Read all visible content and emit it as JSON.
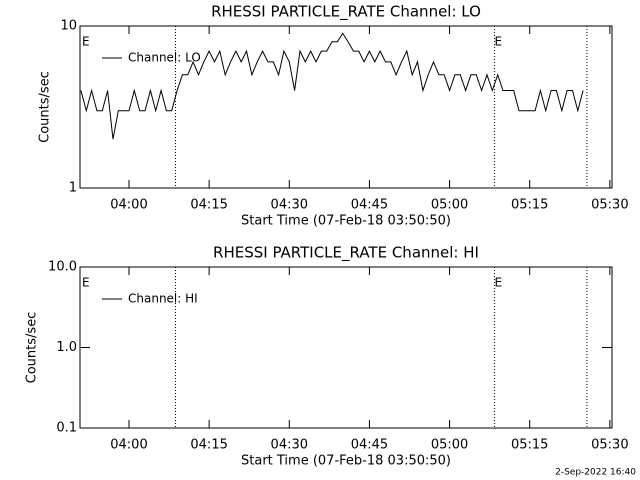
{
  "chart_data": [
    {
      "type": "line",
      "title": "RHESSI PARTICLE_RATE Channel: LO",
      "xlabel": "Start Time (07-Feb-18 03:50:50)",
      "ylabel": "Counts/sec",
      "ylog": true,
      "ylim": [
        1,
        10
      ],
      "yticks": [
        1,
        10
      ],
      "xlim": [
        230.83,
        330.4
      ],
      "xticks": [
        {
          "value": 240,
          "label": "04:00"
        },
        {
          "value": 255,
          "label": "04:15"
        },
        {
          "value": 270,
          "label": "04:30"
        },
        {
          "value": 285,
          "label": "04:45"
        },
        {
          "value": 300,
          "label": "05:00"
        },
        {
          "value": 315,
          "label": "05:15"
        },
        {
          "value": 330,
          "label": "05:30"
        }
      ],
      "vlines": [
        248.7,
        308.4,
        325.7
      ],
      "annotations": [
        {
          "text": "E",
          "x": 231.2
        },
        {
          "text": "E",
          "x": 308.4
        }
      ],
      "legend": "upper left",
      "x": [
        231,
        232,
        233,
        234,
        235,
        236,
        237,
        238,
        239,
        240,
        241,
        242,
        243,
        244,
        245,
        246,
        247,
        248,
        249,
        250,
        251,
        252,
        253,
        254,
        255,
        256,
        257,
        258,
        259,
        260,
        261,
        262,
        263,
        264,
        265,
        266,
        267,
        268,
        269,
        270,
        271,
        272,
        273,
        274,
        275,
        276,
        277,
        278,
        279,
        280,
        281,
        282,
        283,
        284,
        285,
        286,
        287,
        288,
        289,
        290,
        291,
        292,
        293,
        294,
        295,
        296,
        297,
        298,
        299,
        300,
        301,
        302,
        303,
        304,
        305,
        306,
        307,
        308,
        309,
        310,
        311,
        312,
        313,
        314,
        315,
        316,
        317,
        318,
        319,
        320,
        321,
        322,
        323,
        324,
        325
      ],
      "series": [
        {
          "name": "Channel: LO",
          "color": "#000000",
          "values": [
            4,
            3,
            4,
            3,
            3,
            4,
            2,
            3,
            3,
            3,
            4,
            3,
            3,
            4,
            3,
            4,
            3,
            3,
            4,
            5,
            5,
            6,
            5,
            6,
            7,
            6,
            7,
            5,
            6,
            7,
            6,
            7,
            5,
            6,
            7,
            6,
            6,
            5,
            7,
            6,
            4,
            7,
            6,
            7,
            6,
            7,
            7,
            8,
            8,
            9,
            8,
            7,
            7,
            6,
            7,
            6,
            7,
            6,
            6,
            5,
            6,
            7,
            5,
            6,
            4,
            5,
            6,
            5,
            5,
            4,
            5,
            5,
            4,
            5,
            5,
            4,
            5,
            4,
            5,
            4,
            4,
            4,
            3,
            3,
            3,
            3,
            4,
            3,
            4,
            4,
            3,
            4,
            4,
            3,
            4
          ]
        }
      ]
    },
    {
      "type": "line",
      "title": "RHESSI PARTICLE_RATE Channel: HI",
      "xlabel": "Start Time (07-Feb-18 03:50:50)",
      "ylabel": "Counts/sec",
      "ylog": true,
      "ylim": [
        0.1,
        10
      ],
      "yticks": [
        0.1,
        {
          "value": 1,
          "label": "1.0"
        },
        {
          "value": 10,
          "label": "10.0"
        }
      ],
      "xlim": [
        230.83,
        330.4
      ],
      "xticks": [
        {
          "value": 240,
          "label": "04:00"
        },
        {
          "value": 255,
          "label": "04:15"
        },
        {
          "value": 270,
          "label": "04:30"
        },
        {
          "value": 285,
          "label": "04:45"
        },
        {
          "value": 300,
          "label": "05:00"
        },
        {
          "value": 315,
          "label": "05:15"
        },
        {
          "value": 330,
          "label": "05:30"
        }
      ],
      "vlines": [
        248.7,
        308.4,
        325.7
      ],
      "annotations": [
        {
          "text": "E",
          "x": 231.2
        },
        {
          "text": "E",
          "x": 308.4
        }
      ],
      "legend": "upper left",
      "x": [],
      "series": [
        {
          "name": "Channel: HI",
          "color": "#000000",
          "values": []
        }
      ]
    }
  ],
  "footer": "2-Sep-2022 16:40"
}
